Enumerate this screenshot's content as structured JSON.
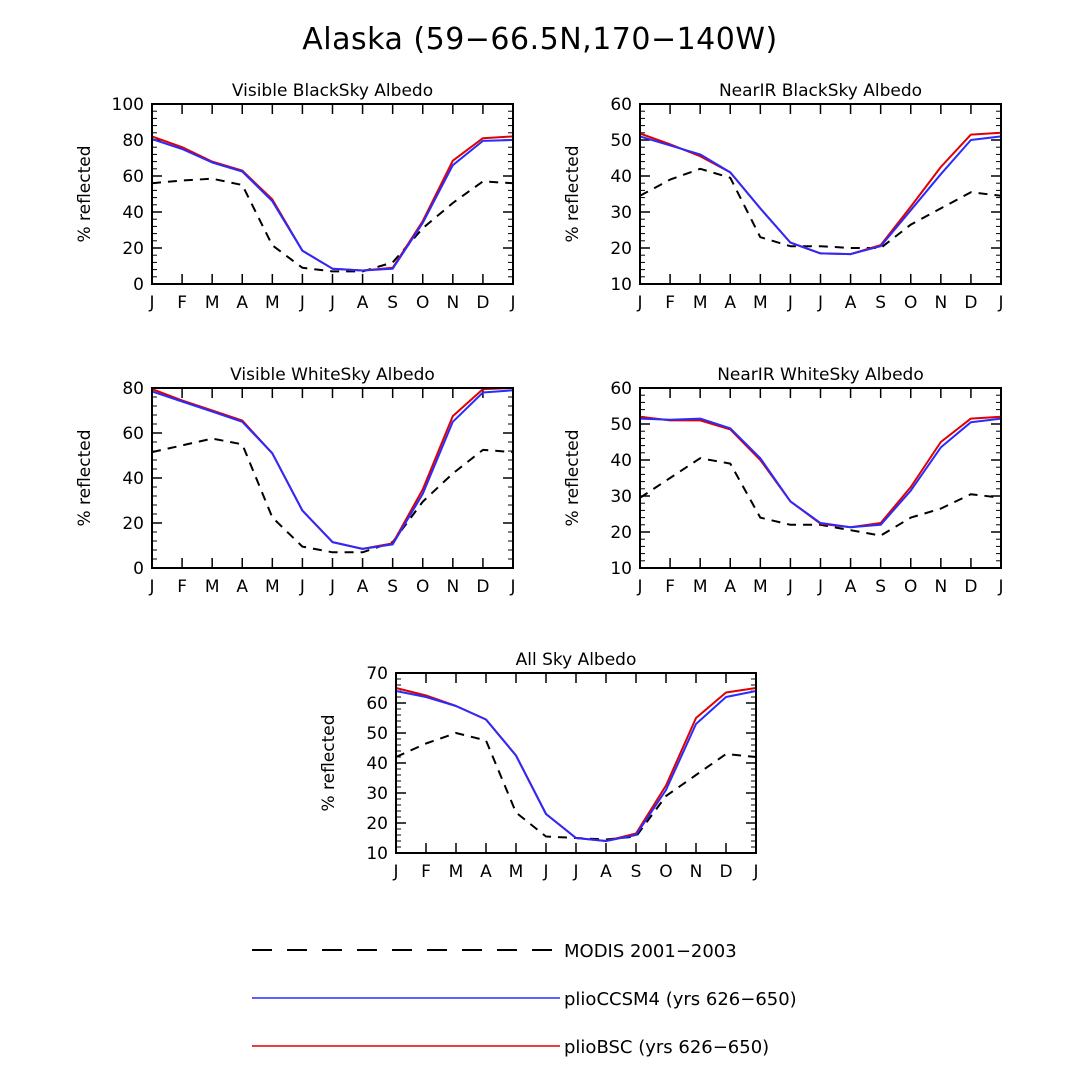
{
  "figure_title": "Alaska (59−66.5N,170−140W)",
  "colors": {
    "modis": "#000000",
    "ccsm4": "#2b2bff",
    "bsc": "#e00000"
  },
  "legend": [
    {
      "label": "MODIS 2001−2003",
      "style": "dashed",
      "color": "#000000"
    },
    {
      "label": "plioCCSM4 (yrs 626−650)",
      "style": "solid",
      "color": "#2b2bff"
    },
    {
      "label": "plioBSC (yrs 626−650)",
      "style": "solid",
      "color": "#e00000"
    }
  ],
  "chart_data": [
    {
      "type": "line",
      "title": "Visible BlackSky Albedo",
      "xlabel": "",
      "ylabel": "% reflected",
      "categories": [
        "J",
        "F",
        "M",
        "A",
        "M",
        "J",
        "J",
        "A",
        "S",
        "O",
        "N",
        "D",
        "J"
      ],
      "ylim": [
        0,
        100
      ],
      "yticks": [
        0,
        20,
        40,
        60,
        80,
        100
      ],
      "series": [
        {
          "name": "MODIS 2001−2003",
          "values": [
            56,
            57.5,
            58.5,
            55,
            21.5,
            9,
            7,
            7,
            12,
            31,
            45,
            57,
            56
          ]
        },
        {
          "name": "plioCCSM4 (yrs 626−650)",
          "values": [
            80.5,
            75,
            67.5,
            62.5,
            46,
            18.5,
            8.5,
            7.5,
            8.5,
            34,
            66,
            79.5,
            80
          ]
        },
        {
          "name": "plioBSC (yrs 626−650)",
          "values": [
            82,
            76,
            68,
            63,
            47,
            18.5,
            8.5,
            7.5,
            9,
            35,
            68.5,
            81,
            82
          ]
        }
      ]
    },
    {
      "type": "line",
      "title": "NearIR BlackSky Albedo",
      "xlabel": "",
      "ylabel": "% reflected",
      "categories": [
        "J",
        "F",
        "M",
        "A",
        "M",
        "J",
        "J",
        "A",
        "S",
        "O",
        "N",
        "D",
        "J"
      ],
      "ylim": [
        10,
        60
      ],
      "yticks": [
        10,
        20,
        30,
        40,
        50,
        60
      ],
      "series": [
        {
          "name": "MODIS 2001−2003",
          "values": [
            34.5,
            39,
            42,
            39.5,
            23,
            20.5,
            20.5,
            20,
            20,
            26.5,
            31,
            35.5,
            34.5
          ]
        },
        {
          "name": "plioCCSM4 (yrs 626−650)",
          "values": [
            51,
            48.5,
            46,
            41,
            31,
            21.5,
            18.5,
            18.3,
            20.5,
            30.5,
            40.5,
            50,
            51
          ]
        },
        {
          "name": "plioBSC (yrs 626−650)",
          "values": [
            51.8,
            48.8,
            45.5,
            41,
            31,
            21.5,
            18.5,
            18.3,
            20.8,
            31.5,
            42.5,
            51.5,
            52
          ]
        }
      ]
    },
    {
      "type": "line",
      "title": "Visible WhiteSky Albedo",
      "xlabel": "",
      "ylabel": "% reflected",
      "categories": [
        "J",
        "F",
        "M",
        "A",
        "M",
        "J",
        "J",
        "A",
        "S",
        "O",
        "N",
        "D",
        "J"
      ],
      "ylim": [
        0,
        80
      ],
      "yticks": [
        0,
        20,
        40,
        60,
        80
      ],
      "series": [
        {
          "name": "MODIS 2001−2003",
          "values": [
            51.5,
            54.5,
            57.5,
            55,
            22.5,
            9.5,
            7,
            7,
            11.5,
            29.5,
            42,
            52.5,
            51.5
          ]
        },
        {
          "name": "plioCCSM4 (yrs 626−650)",
          "values": [
            78.5,
            74,
            69.5,
            65,
            51,
            25.5,
            11.5,
            8.5,
            10.5,
            33,
            65,
            78,
            79
          ]
        },
        {
          "name": "plioBSC (yrs 626−650)",
          "values": [
            79.5,
            74.5,
            70,
            65.5,
            51,
            25.5,
            11.5,
            8.5,
            11,
            35,
            67.5,
            79.5,
            80
          ]
        }
      ]
    },
    {
      "type": "line",
      "title": "NearIR WhiteSky Albedo",
      "xlabel": "",
      "ylabel": "% reflected",
      "categories": [
        "J",
        "F",
        "M",
        "A",
        "M",
        "J",
        "J",
        "A",
        "S",
        "O",
        "N",
        "D",
        "J"
      ],
      "ylim": [
        10,
        60
      ],
      "yticks": [
        10,
        20,
        30,
        40,
        50,
        60
      ],
      "series": [
        {
          "name": "MODIS 2001−2003",
          "values": [
            29.5,
            35,
            40.5,
            39,
            24,
            22,
            22,
            20.5,
            19,
            24,
            26.5,
            30.5,
            29.5
          ]
        },
        {
          "name": "plioCCSM4 (yrs 626−650)",
          "values": [
            51.5,
            51.2,
            51.5,
            48.8,
            40.5,
            28.5,
            22.5,
            21.3,
            22,
            31.5,
            43.5,
            50.5,
            51.5
          ]
        },
        {
          "name": "plioBSC (yrs 626−650)",
          "values": [
            52,
            51,
            51,
            48.5,
            40,
            28.5,
            22.3,
            21.3,
            22.5,
            32.5,
            45,
            51.5,
            52
          ]
        }
      ]
    },
    {
      "type": "line",
      "title": "All Sky Albedo",
      "xlabel": "",
      "ylabel": "% reflected",
      "categories": [
        "J",
        "F",
        "M",
        "A",
        "M",
        "J",
        "J",
        "A",
        "S",
        "O",
        "N",
        "D",
        "J"
      ],
      "ylim": [
        10,
        70
      ],
      "yticks": [
        10,
        20,
        30,
        40,
        50,
        60,
        70
      ],
      "series": [
        {
          "name": "MODIS 2001−2003",
          "values": [
            42,
            46.5,
            50,
            47.5,
            23.5,
            15.5,
            15,
            14.5,
            15.5,
            29,
            36,
            43,
            42
          ]
        },
        {
          "name": "plioCCSM4 (yrs 626−650)",
          "values": [
            64,
            62,
            59,
            54.5,
            42.5,
            23,
            15,
            14,
            16,
            31,
            53,
            62,
            64
          ]
        },
        {
          "name": "plioBSC (yrs 626−650)",
          "values": [
            65,
            62.5,
            59,
            54.5,
            42.5,
            23,
            15,
            14,
            16.5,
            32.5,
            55,
            63.5,
            65
          ]
        }
      ]
    }
  ]
}
